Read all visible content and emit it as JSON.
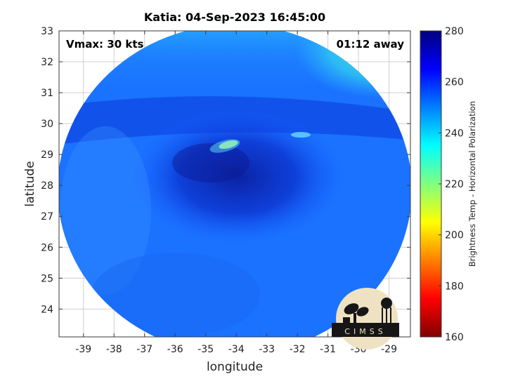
{
  "title": "Katia: 04-Sep-2023 16:45:00",
  "vmax_label": "Vmax: 30 kts",
  "time_away_label": "01:12 away",
  "logo_text": "CIMSS",
  "colors": {
    "ocean_fill": "#1a72ff",
    "core_dark": "#0a1fa8",
    "upper_cyan": "#2fc8f0",
    "warm_spot": "#b8f070"
  },
  "chart_data": {
    "type": "heatmap",
    "title": "Katia: 04-Sep-2023 16:45:00",
    "xlabel": "longitude",
    "ylabel": "latitude",
    "xlim": [
      -39.8,
      -28.3
    ],
    "ylim": [
      23.1,
      33.0
    ],
    "xticks": [
      -39,
      -38,
      -37,
      -36,
      -35,
      -34,
      -33,
      -32,
      -31,
      -30,
      -29
    ],
    "yticks": [
      24,
      25,
      26,
      27,
      28,
      29,
      30,
      31,
      32,
      33
    ],
    "grid": true,
    "colorbar": {
      "label": "Brightness Temp - Horizontal Polarization",
      "range": [
        160,
        280
      ],
      "ticks": [
        160,
        180,
        200,
        220,
        240,
        260,
        280
      ],
      "colormap": "jet"
    }
  }
}
